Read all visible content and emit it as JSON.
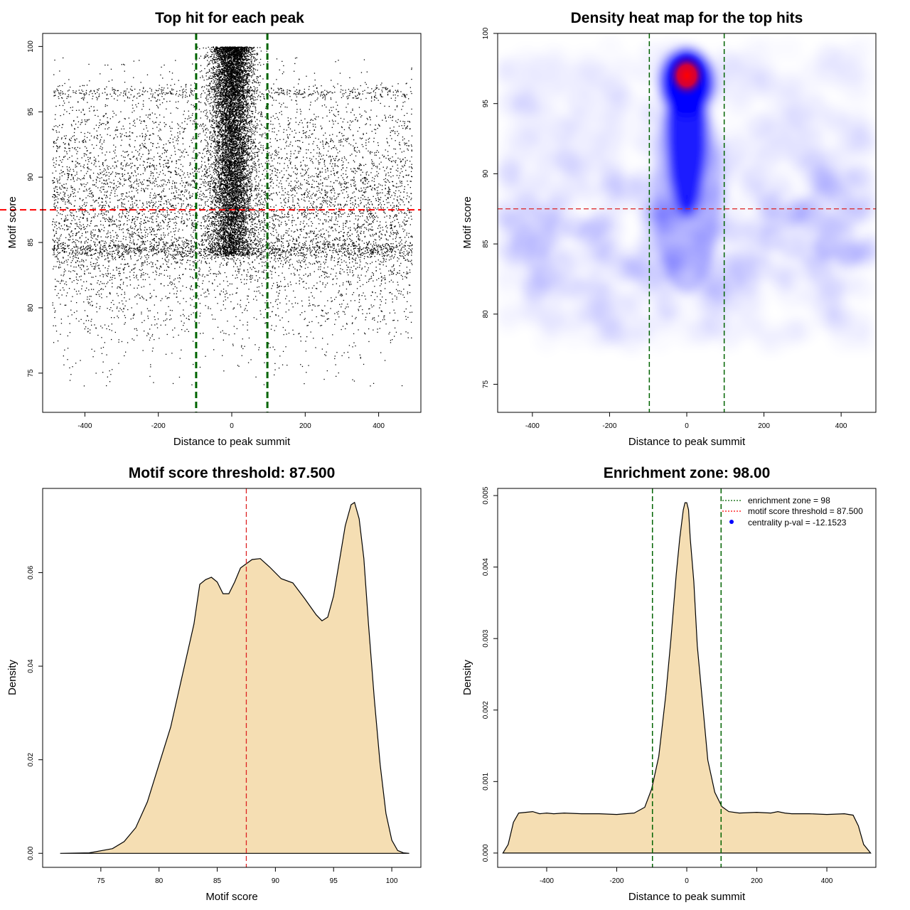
{
  "chart_data": [
    {
      "type": "scatter",
      "title": "Top hit for each peak",
      "xlabel": "Distance to peak summit",
      "ylabel": "Motif score",
      "xlim": [
        -515,
        515
      ],
      "ylim": [
        72,
        101
      ],
      "xticks": [
        -400,
        -200,
        0,
        200,
        400
      ],
      "yticks": [
        75,
        80,
        85,
        90,
        95,
        100
      ],
      "background_points": {
        "x_range": [
          -490,
          490
        ],
        "y_mean": 87.5,
        "y_sd": 4.8,
        "dense_bands": [
          84.5,
          96.5
        ]
      },
      "central_cluster": {
        "x_center": 0,
        "x_sd": 28,
        "y_range": [
          84,
          100
        ]
      },
      "vlines": [
        -97,
        97
      ],
      "hline": 87.5,
      "colors": {
        "points": "#000000",
        "vlines": "#006400",
        "hline": "#ff0000"
      }
    },
    {
      "type": "heatmap",
      "title": "Density heat map for the top hits",
      "xlabel": "Distance to peak summit",
      "ylabel": "Motif score",
      "xlim": [
        -490,
        490
      ],
      "ylim": [
        73,
        100
      ],
      "xticks": [
        -400,
        -200,
        0,
        200,
        400
      ],
      "yticks": [
        75,
        80,
        85,
        90,
        95,
        100
      ],
      "hotspot": {
        "x": 0,
        "y": 97
      },
      "vlines": [
        -97,
        97
      ],
      "hline": 87.5,
      "colors": {
        "low": "#ffffff",
        "mid": "#0000ff",
        "high": "#ff0000",
        "vlines": "#006400",
        "hline": "#dd2222"
      }
    },
    {
      "type": "area",
      "title": "Motif score threshold: 87.500",
      "xlabel": "Motif score",
      "ylabel": "Density",
      "xlim": [
        70,
        102.5
      ],
      "ylim": [
        -0.003,
        0.078
      ],
      "xticks": [
        75,
        80,
        85,
        90,
        95,
        100
      ],
      "yticks": [
        "0.00",
        "0.02",
        "0.04",
        "0.06"
      ],
      "x": [
        71.5,
        74,
        76,
        77,
        78,
        79,
        80,
        81,
        82,
        83,
        83.5,
        84,
        84.5,
        85,
        85.5,
        86,
        86.5,
        87,
        88,
        88.7,
        89.5,
        90.5,
        91.5,
        92.5,
        93.5,
        94,
        94.5,
        95,
        95.5,
        96,
        96.5,
        96.8,
        97.2,
        97.6,
        98,
        98.5,
        99,
        99.5,
        100,
        100.5,
        101,
        101.5
      ],
      "y": [
        0,
        0.0001,
        0.001,
        0.0025,
        0.0055,
        0.011,
        0.019,
        0.027,
        0.038,
        0.049,
        0.0575,
        0.0585,
        0.059,
        0.058,
        0.0555,
        0.0555,
        0.058,
        0.061,
        0.0628,
        0.063,
        0.0612,
        0.0587,
        0.0578,
        0.0545,
        0.051,
        0.0497,
        0.0505,
        0.055,
        0.0625,
        0.07,
        0.0745,
        0.075,
        0.0715,
        0.063,
        0.049,
        0.033,
        0.019,
        0.0085,
        0.0028,
        0.0006,
        0.0001,
        0
      ],
      "threshold": 87.5,
      "colors": {
        "fill": "#f5deb3",
        "line": "#000000",
        "threshold": "#dd2222"
      }
    },
    {
      "type": "area",
      "title": "Enrichment zone: 98.00",
      "xlabel": "Distance to peak summit",
      "ylabel": "Density",
      "xlim": [
        -540,
        540
      ],
      "ylim": [
        -0.0002,
        0.0051
      ],
      "xticks": [
        -400,
        -200,
        0,
        200,
        400
      ],
      "yticks": [
        "0.000",
        "0.001",
        "0.002",
        "0.003",
        "0.004",
        "0.005"
      ],
      "x": [
        -525,
        -510,
        -495,
        -480,
        -460,
        -440,
        -420,
        -400,
        -380,
        -350,
        -300,
        -250,
        -200,
        -150,
        -120,
        -100,
        -80,
        -60,
        -45,
        -30,
        -20,
        -10,
        -5,
        0,
        5,
        10,
        20,
        30,
        45,
        60,
        80,
        100,
        120,
        150,
        200,
        240,
        260,
        280,
        300,
        350,
        400,
        450,
        475,
        490,
        505,
        525
      ],
      "y": [
        0.0,
        0.00012,
        0.00043,
        0.00056,
        0.00057,
        0.00058,
        0.00055,
        0.00056,
        0.00055,
        0.00056,
        0.00055,
        0.00055,
        0.00054,
        0.00056,
        0.00064,
        0.0009,
        0.00135,
        0.0022,
        0.003,
        0.0039,
        0.0044,
        0.0048,
        0.0049,
        0.0049,
        0.0048,
        0.0044,
        0.0038,
        0.0029,
        0.0021,
        0.0013,
        0.00085,
        0.00065,
        0.00058,
        0.00056,
        0.00057,
        0.00056,
        0.00058,
        0.00056,
        0.00055,
        0.00055,
        0.00054,
        0.00055,
        0.00053,
        0.00038,
        0.00012,
        0.0
      ],
      "vlines": [
        -98,
        98
      ],
      "legend": [
        "enrichment zone = 98",
        "motif score threshold = 87.500",
        "centrality p-val = -12.1523"
      ],
      "legend_position": "top-right",
      "colors": {
        "fill": "#f5deb3",
        "line": "#000000",
        "vlines": "#006400",
        "threshold": "#ff0000",
        "pval": "#0000ff"
      }
    }
  ]
}
